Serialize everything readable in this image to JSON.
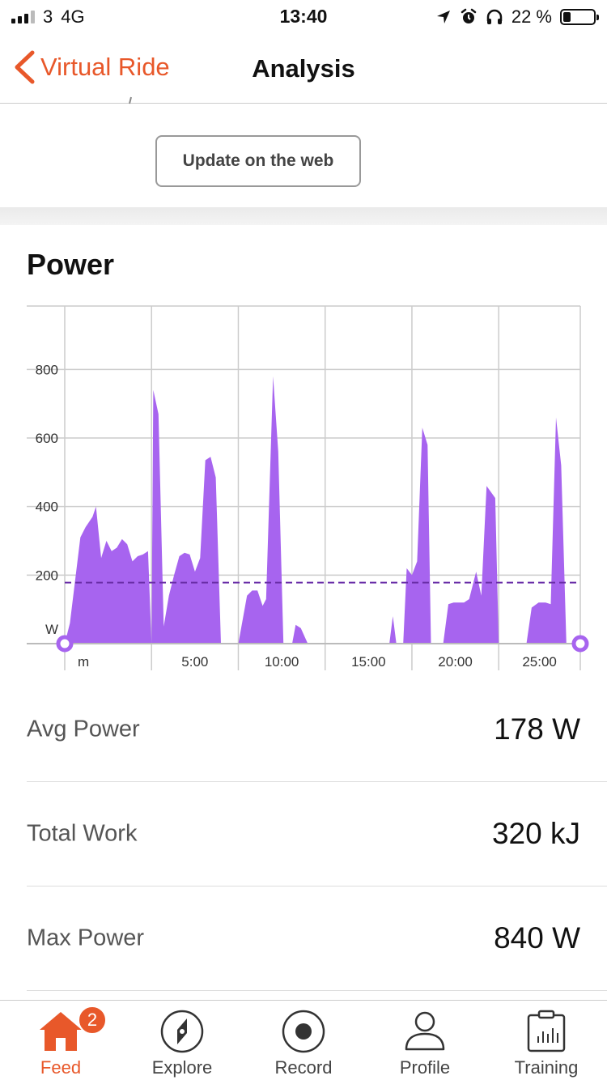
{
  "status_bar": {
    "carrier": "3",
    "network": "4G",
    "time": "13:40",
    "battery": "22 %"
  },
  "nav": {
    "back_label": "Virtual Ride",
    "title": "Analysis"
  },
  "update_button": "Update on the web",
  "power": {
    "title": "Power",
    "avg_line": 178,
    "colors": {
      "fill": "#a764ef",
      "avg_line": "#6a2ea8",
      "handle": "#a764ef"
    }
  },
  "chart_data": {
    "type": "area",
    "ylabel": "W",
    "xlabel": "m",
    "y_ticks": [
      200,
      400,
      600,
      800
    ],
    "x_ticks": [
      "5:00",
      "10:00",
      "15:00",
      "20:00",
      "25:00"
    ],
    "ylim": [
      0,
      985
    ],
    "xlim": [
      0,
      29.7
    ],
    "grid": true,
    "series": [
      {
        "values": [
          [
            0,
            0
          ],
          [
            0.3,
            60
          ],
          [
            0.9,
            310
          ],
          [
            1.2,
            340
          ],
          [
            1.6,
            370
          ],
          [
            1.8,
            400
          ],
          [
            2.1,
            250
          ],
          [
            2.4,
            300
          ],
          [
            2.7,
            270
          ],
          [
            3.0,
            280
          ],
          [
            3.3,
            305
          ],
          [
            3.6,
            290
          ],
          [
            3.9,
            240
          ],
          [
            4.2,
            255
          ],
          [
            4.5,
            260
          ],
          [
            4.8,
            270
          ],
          [
            5.0,
            0
          ],
          [
            5.1,
            740
          ],
          [
            5.4,
            670
          ],
          [
            5.7,
            50
          ],
          [
            6.0,
            140
          ],
          [
            6.3,
            200
          ],
          [
            6.6,
            255
          ],
          [
            6.9,
            265
          ],
          [
            7.2,
            260
          ],
          [
            7.5,
            210
          ],
          [
            7.8,
            250
          ],
          [
            8.1,
            535
          ],
          [
            8.4,
            545
          ],
          [
            8.7,
            485
          ],
          [
            9.0,
            0
          ],
          [
            10.0,
            0
          ],
          [
            10.5,
            140
          ],
          [
            10.8,
            155
          ],
          [
            11.1,
            155
          ],
          [
            11.4,
            110
          ],
          [
            11.6,
            130
          ],
          [
            12.0,
            780
          ],
          [
            12.3,
            560
          ],
          [
            12.6,
            0
          ],
          [
            13.1,
            0
          ],
          [
            13.3,
            55
          ],
          [
            13.6,
            45
          ],
          [
            14.0,
            0
          ],
          [
            18.7,
            0
          ],
          [
            18.9,
            80
          ],
          [
            19.1,
            0
          ],
          [
            19.5,
            0
          ],
          [
            19.7,
            220
          ],
          [
            20.0,
            200
          ],
          [
            20.3,
            240
          ],
          [
            20.6,
            630
          ],
          [
            20.9,
            580
          ],
          [
            21.1,
            0
          ],
          [
            21.8,
            0
          ],
          [
            22.1,
            115
          ],
          [
            22.4,
            120
          ],
          [
            22.7,
            120
          ],
          [
            23.0,
            120
          ],
          [
            23.3,
            130
          ],
          [
            23.7,
            210
          ],
          [
            24.0,
            140
          ],
          [
            24.3,
            460
          ],
          [
            24.8,
            425
          ],
          [
            25.0,
            0
          ],
          [
            26.6,
            0
          ],
          [
            26.9,
            105
          ],
          [
            27.3,
            120
          ],
          [
            27.7,
            120
          ],
          [
            28.0,
            115
          ],
          [
            28.3,
            660
          ],
          [
            28.6,
            520
          ],
          [
            28.9,
            0
          ]
        ]
      }
    ]
  },
  "stats": [
    {
      "label": "Avg Power",
      "value": "178 W"
    },
    {
      "label": "Total Work",
      "value": "320 kJ"
    },
    {
      "label": "Max Power",
      "value": "840 W"
    }
  ],
  "tabs": [
    {
      "label": "Feed",
      "icon": "home-icon",
      "badge": "2",
      "active": true
    },
    {
      "label": "Explore",
      "icon": "compass-icon"
    },
    {
      "label": "Record",
      "icon": "record-icon"
    },
    {
      "label": "Profile",
      "icon": "profile-icon"
    },
    {
      "label": "Training",
      "icon": "training-icon"
    }
  ]
}
